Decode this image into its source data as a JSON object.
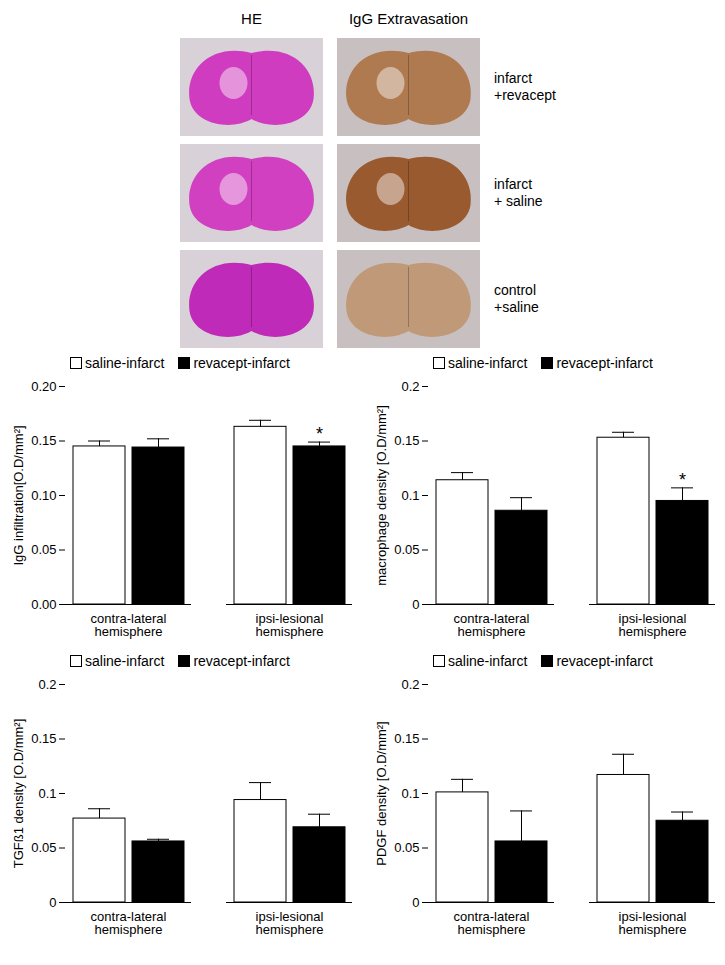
{
  "image_panel": {
    "column_titles": [
      "HE",
      "IgG Extravasation"
    ],
    "row_labels": [
      "infarct +revacept",
      "infarct + saline",
      "control +saline"
    ]
  },
  "chart_data": [
    {
      "type": "bar",
      "ylabel": "IgG infiltration[O.D/mm²]",
      "categories": [
        "contra-lateral hemisphere",
        "ipsi-lesional hemisphere"
      ],
      "series": [
        {
          "name": "saline-infarct",
          "color": "#ffffff",
          "values": [
            0.145,
            0.163
          ],
          "errors": [
            0.005,
            0.006
          ]
        },
        {
          "name": "revacept-infarct",
          "color": "#000000",
          "values": [
            0.144,
            0.145
          ],
          "errors": [
            0.008,
            0.004
          ]
        }
      ],
      "ylim": [
        0,
        0.2
      ],
      "yticks": [
        {
          "value": 0,
          "label": "0.00"
        },
        {
          "value": 0.05,
          "label": "0.05"
        },
        {
          "value": 0.1,
          "label": "0.10"
        },
        {
          "value": 0.15,
          "label": "0.15"
        },
        {
          "value": 0.2,
          "label": "0.20"
        }
      ],
      "legend": "top-left",
      "annotations": [
        {
          "text": "*",
          "series": "revacept-infarct",
          "category": "ipsi-lesional hemisphere"
        }
      ]
    },
    {
      "type": "bar",
      "ylabel": "macrophage density [O.D/mm²]",
      "categories": [
        "contra-lateral hemisphere",
        "ipsi-lesional hemisphere"
      ],
      "series": [
        {
          "name": "saline-infarct",
          "color": "#ffffff",
          "values": [
            0.114,
            0.153
          ],
          "errors": [
            0.007,
            0.005
          ]
        },
        {
          "name": "revacept-infarct",
          "color": "#000000",
          "values": [
            0.086,
            0.095
          ],
          "errors": [
            0.012,
            0.012
          ]
        }
      ],
      "ylim": [
        0,
        0.2
      ],
      "yticks": [
        0,
        0.05,
        0.1,
        0.15,
        0.2
      ],
      "legend": "top-left",
      "annotations": [
        {
          "text": "*",
          "series": "revacept-infarct",
          "category": "ipsi-lesional hemisphere"
        }
      ]
    },
    {
      "type": "bar",
      "ylabel": "TGFß1 density [O.D/mm²]",
      "categories": [
        "contra-lateral hemisphere",
        "ipsi-lesional hemisphere"
      ],
      "series": [
        {
          "name": "saline-infarct",
          "color": "#ffffff",
          "values": [
            0.077,
            0.094
          ],
          "errors": [
            0.009,
            0.016
          ]
        },
        {
          "name": "revacept-infarct",
          "color": "#000000",
          "values": [
            0.056,
            0.069
          ],
          "errors": [
            0.002,
            0.012
          ]
        }
      ],
      "ylim": [
        0,
        0.2
      ],
      "yticks": [
        0,
        0.05,
        0.1,
        0.15,
        0.2
      ],
      "legend": "top-left",
      "annotations": []
    },
    {
      "type": "bar",
      "ylabel": "PDGF density [O.D/mm²]",
      "categories": [
        "contra-lateral hemisphere",
        "ipsi-lesional hemisphere"
      ],
      "series": [
        {
          "name": "saline-infarct",
          "color": "#ffffff",
          "values": [
            0.101,
            0.117
          ],
          "errors": [
            0.012,
            0.019
          ]
        },
        {
          "name": "revacept-infarct",
          "color": "#000000",
          "values": [
            0.056,
            0.075
          ],
          "errors": [
            0.028,
            0.008
          ]
        }
      ],
      "ylim": [
        0,
        0.2
      ],
      "yticks": [
        0,
        0.05,
        0.1,
        0.15,
        0.2
      ],
      "legend": "top-left",
      "annotations": []
    }
  ]
}
